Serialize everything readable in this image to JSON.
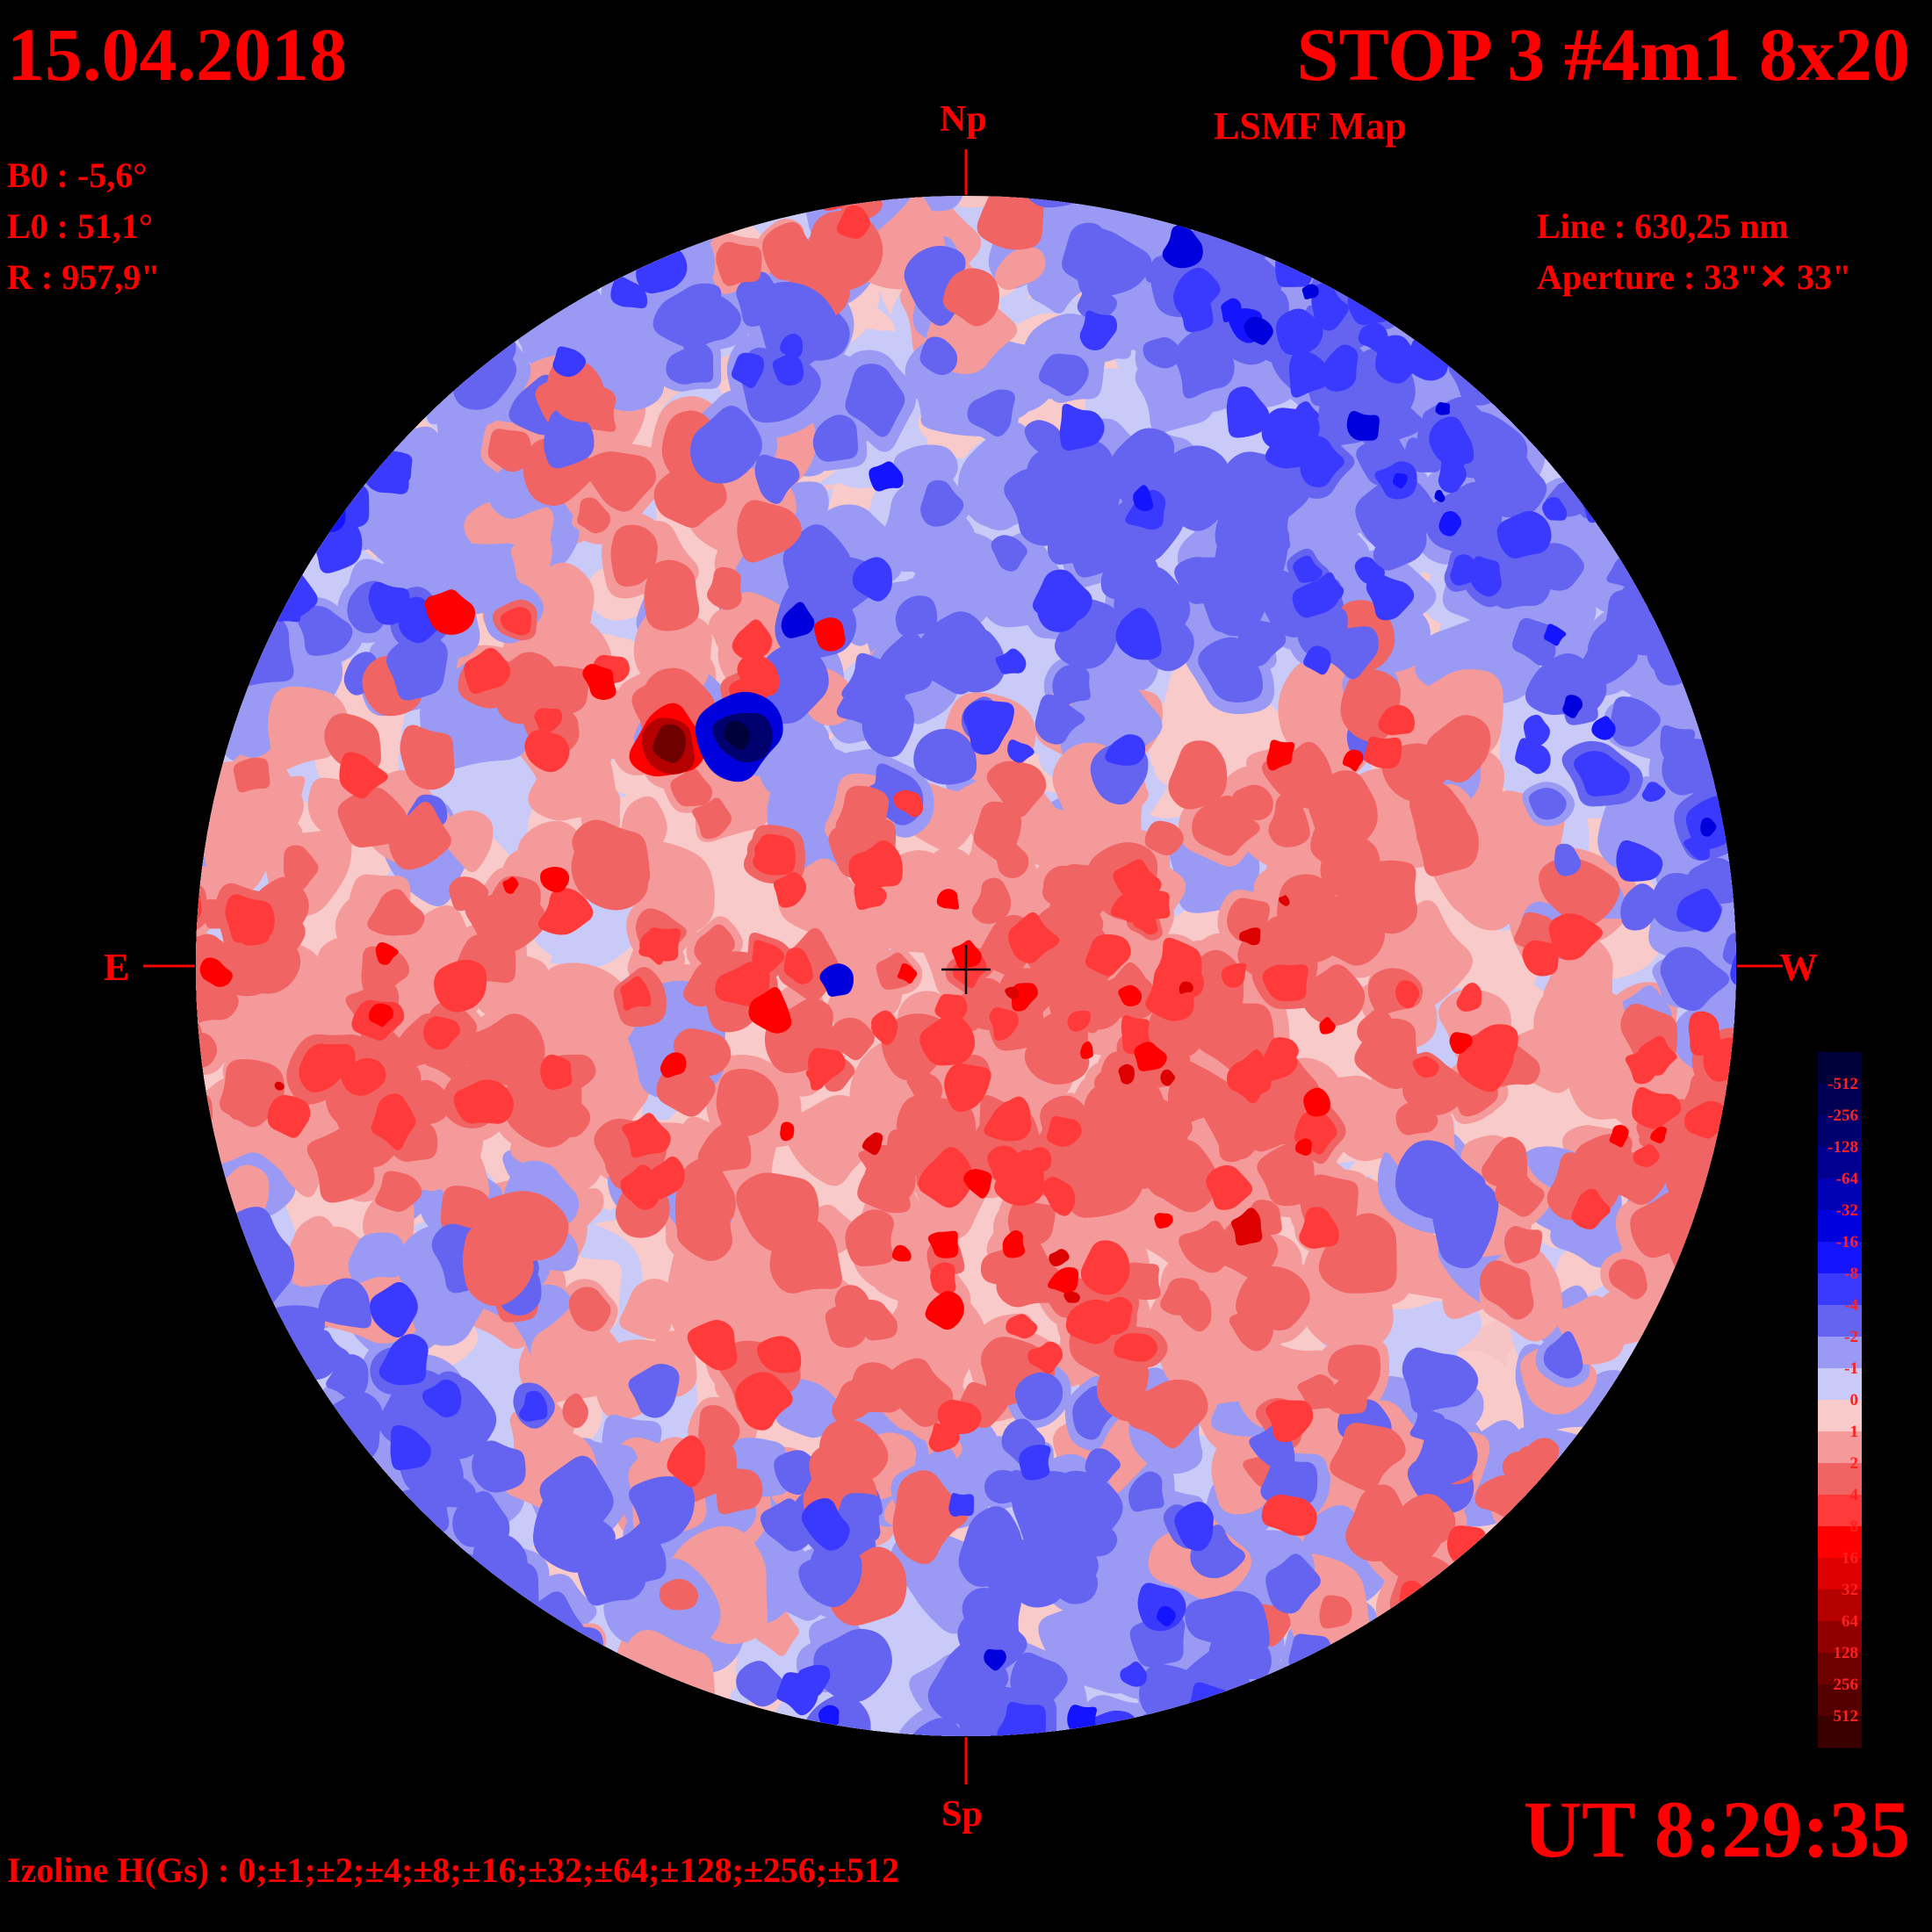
{
  "header": {
    "date": "15.04.2018",
    "title": "STOP 3 #4m1 8x20",
    "subtitle": "LSMF  Map"
  },
  "params": {
    "b0": "B0 : -5,6°",
    "l0": "L0 : 51,1°",
    "r": "R  : 957,9\""
  },
  "instrument": {
    "line": "Line :  630,25 nm",
    "aperture": "Aperture : 33\"✕ 33\""
  },
  "footer": {
    "time": "UT 8:29:35",
    "izoline": "Izoline H(Gs) : 0;±1;±2;±4;±8;±16;±32;±64;±128;±256;±512"
  },
  "orientation": {
    "north": "Np",
    "south": "Sp",
    "east": "E",
    "west": "W"
  },
  "scale": {
    "labels": [
      "-512",
      "-256",
      "-128",
      "-64",
      "-32",
      "-16",
      "-8",
      "-4",
      "-2",
      "-1",
      "0",
      "1",
      "2",
      "4",
      "8",
      "16",
      "32",
      "64",
      "128",
      "256",
      "512"
    ],
    "colors": [
      "#00003a",
      "#000055",
      "#00006e",
      "#000090",
      "#0000b5",
      "#0000dd",
      "#1414ff",
      "#3a3aff",
      "#6464f0",
      "#9a9af5",
      "#cacaf8",
      "#f8caca",
      "#f59a9a",
      "#f06464",
      "#ff3a3a",
      "#ff0000",
      "#dd0000",
      "#b50000",
      "#900000",
      "#6e0000",
      "#550000",
      "#3a0000"
    ]
  },
  "colors": {
    "text": "#ff0000",
    "background": "#000000",
    "contour": "#ffffff"
  }
}
